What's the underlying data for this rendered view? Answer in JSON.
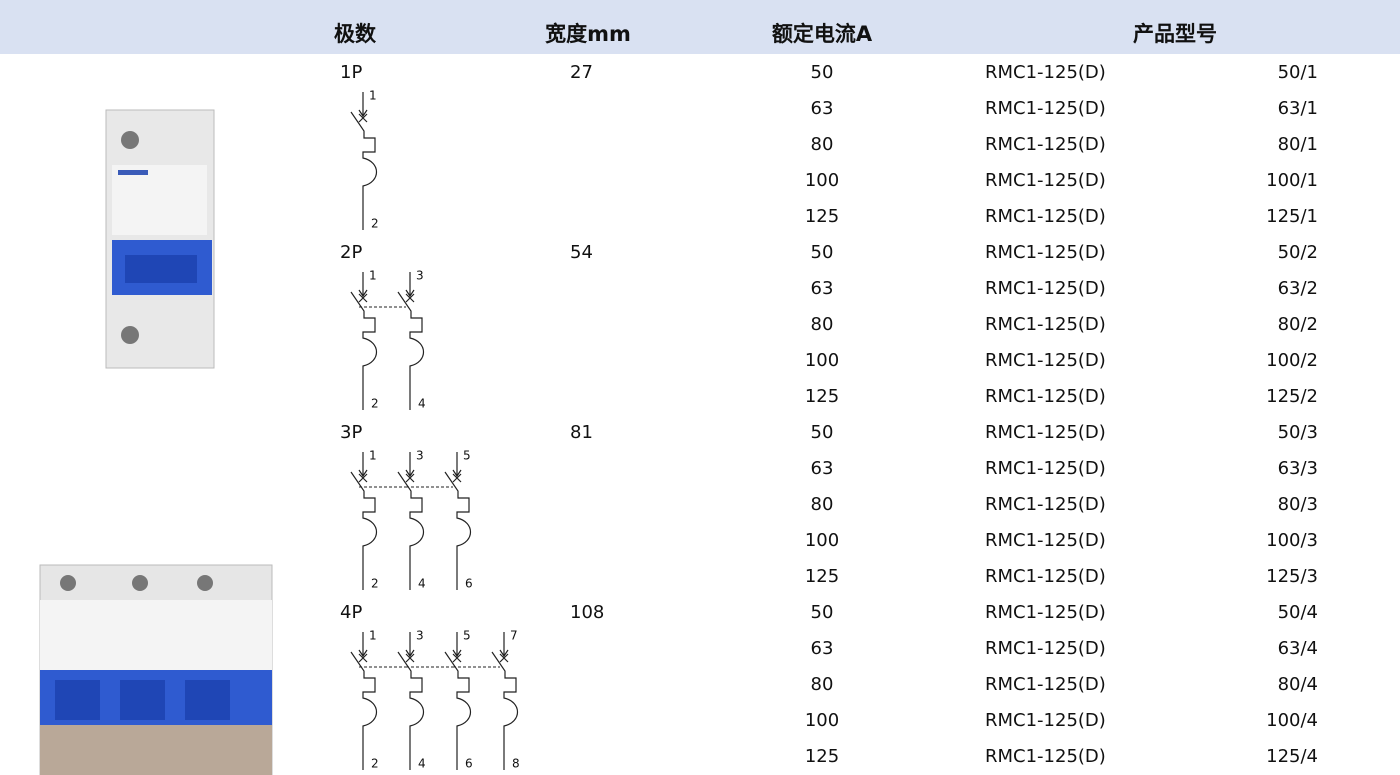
{
  "header": {
    "poles": "极数",
    "width": "宽度mm",
    "current": "额定电流A",
    "model": "产品型号"
  },
  "groups": [
    {
      "poles": "1P",
      "width": 27,
      "diagram": {
        "top": [
          "1"
        ],
        "bottom": [
          "2"
        ]
      },
      "rows": [
        {
          "current": 50,
          "model": "RMC1-125(D)",
          "code": "50/1"
        },
        {
          "current": 63,
          "model": "RMC1-125(D)",
          "code": "63/1"
        },
        {
          "current": 80,
          "model": "RMC1-125(D)",
          "code": "80/1"
        },
        {
          "current": 100,
          "model": "RMC1-125(D)",
          "code": "100/1"
        },
        {
          "current": 125,
          "model": "RMC1-125(D)",
          "code": "125/1"
        }
      ]
    },
    {
      "poles": "2P",
      "width": 54,
      "diagram": {
        "top": [
          "1",
          "3"
        ],
        "bottom": [
          "2",
          "4"
        ]
      },
      "rows": [
        {
          "current": 50,
          "model": "RMC1-125(D)",
          "code": "50/2"
        },
        {
          "current": 63,
          "model": "RMC1-125(D)",
          "code": "63/2"
        },
        {
          "current": 80,
          "model": "RMC1-125(D)",
          "code": "80/2"
        },
        {
          "current": 100,
          "model": "RMC1-125(D)",
          "code": "100/2"
        },
        {
          "current": 125,
          "model": "RMC1-125(D)",
          "code": "125/2"
        }
      ]
    },
    {
      "poles": "3P",
      "width": 81,
      "diagram": {
        "top": [
          "1",
          "3",
          "5"
        ],
        "bottom": [
          "2",
          "4",
          "6"
        ]
      },
      "rows": [
        {
          "current": 50,
          "model": "RMC1-125(D)",
          "code": "50/3"
        },
        {
          "current": 63,
          "model": "RMC1-125(D)",
          "code": "63/3"
        },
        {
          "current": 80,
          "model": "RMC1-125(D)",
          "code": "80/3"
        },
        {
          "current": 100,
          "model": "RMC1-125(D)",
          "code": "100/3"
        },
        {
          "current": 125,
          "model": "RMC1-125(D)",
          "code": "125/3"
        }
      ]
    },
    {
      "poles": "4P",
      "width": 108,
      "diagram": {
        "top": [
          "1",
          "3",
          "5",
          "7"
        ],
        "bottom": [
          "2",
          "4",
          "6",
          "8"
        ]
      },
      "rows": [
        {
          "current": 50,
          "model": "RMC1-125(D)",
          "code": "50/4"
        },
        {
          "current": 63,
          "model": "RMC1-125(D)",
          "code": "63/4"
        },
        {
          "current": 80,
          "model": "RMC1-125(D)",
          "code": "80/4"
        },
        {
          "current": 100,
          "model": "RMC1-125(D)",
          "code": "100/4"
        },
        {
          "current": 125,
          "model": "RMC1-125(D)",
          "code": "125/4"
        }
      ]
    }
  ]
}
